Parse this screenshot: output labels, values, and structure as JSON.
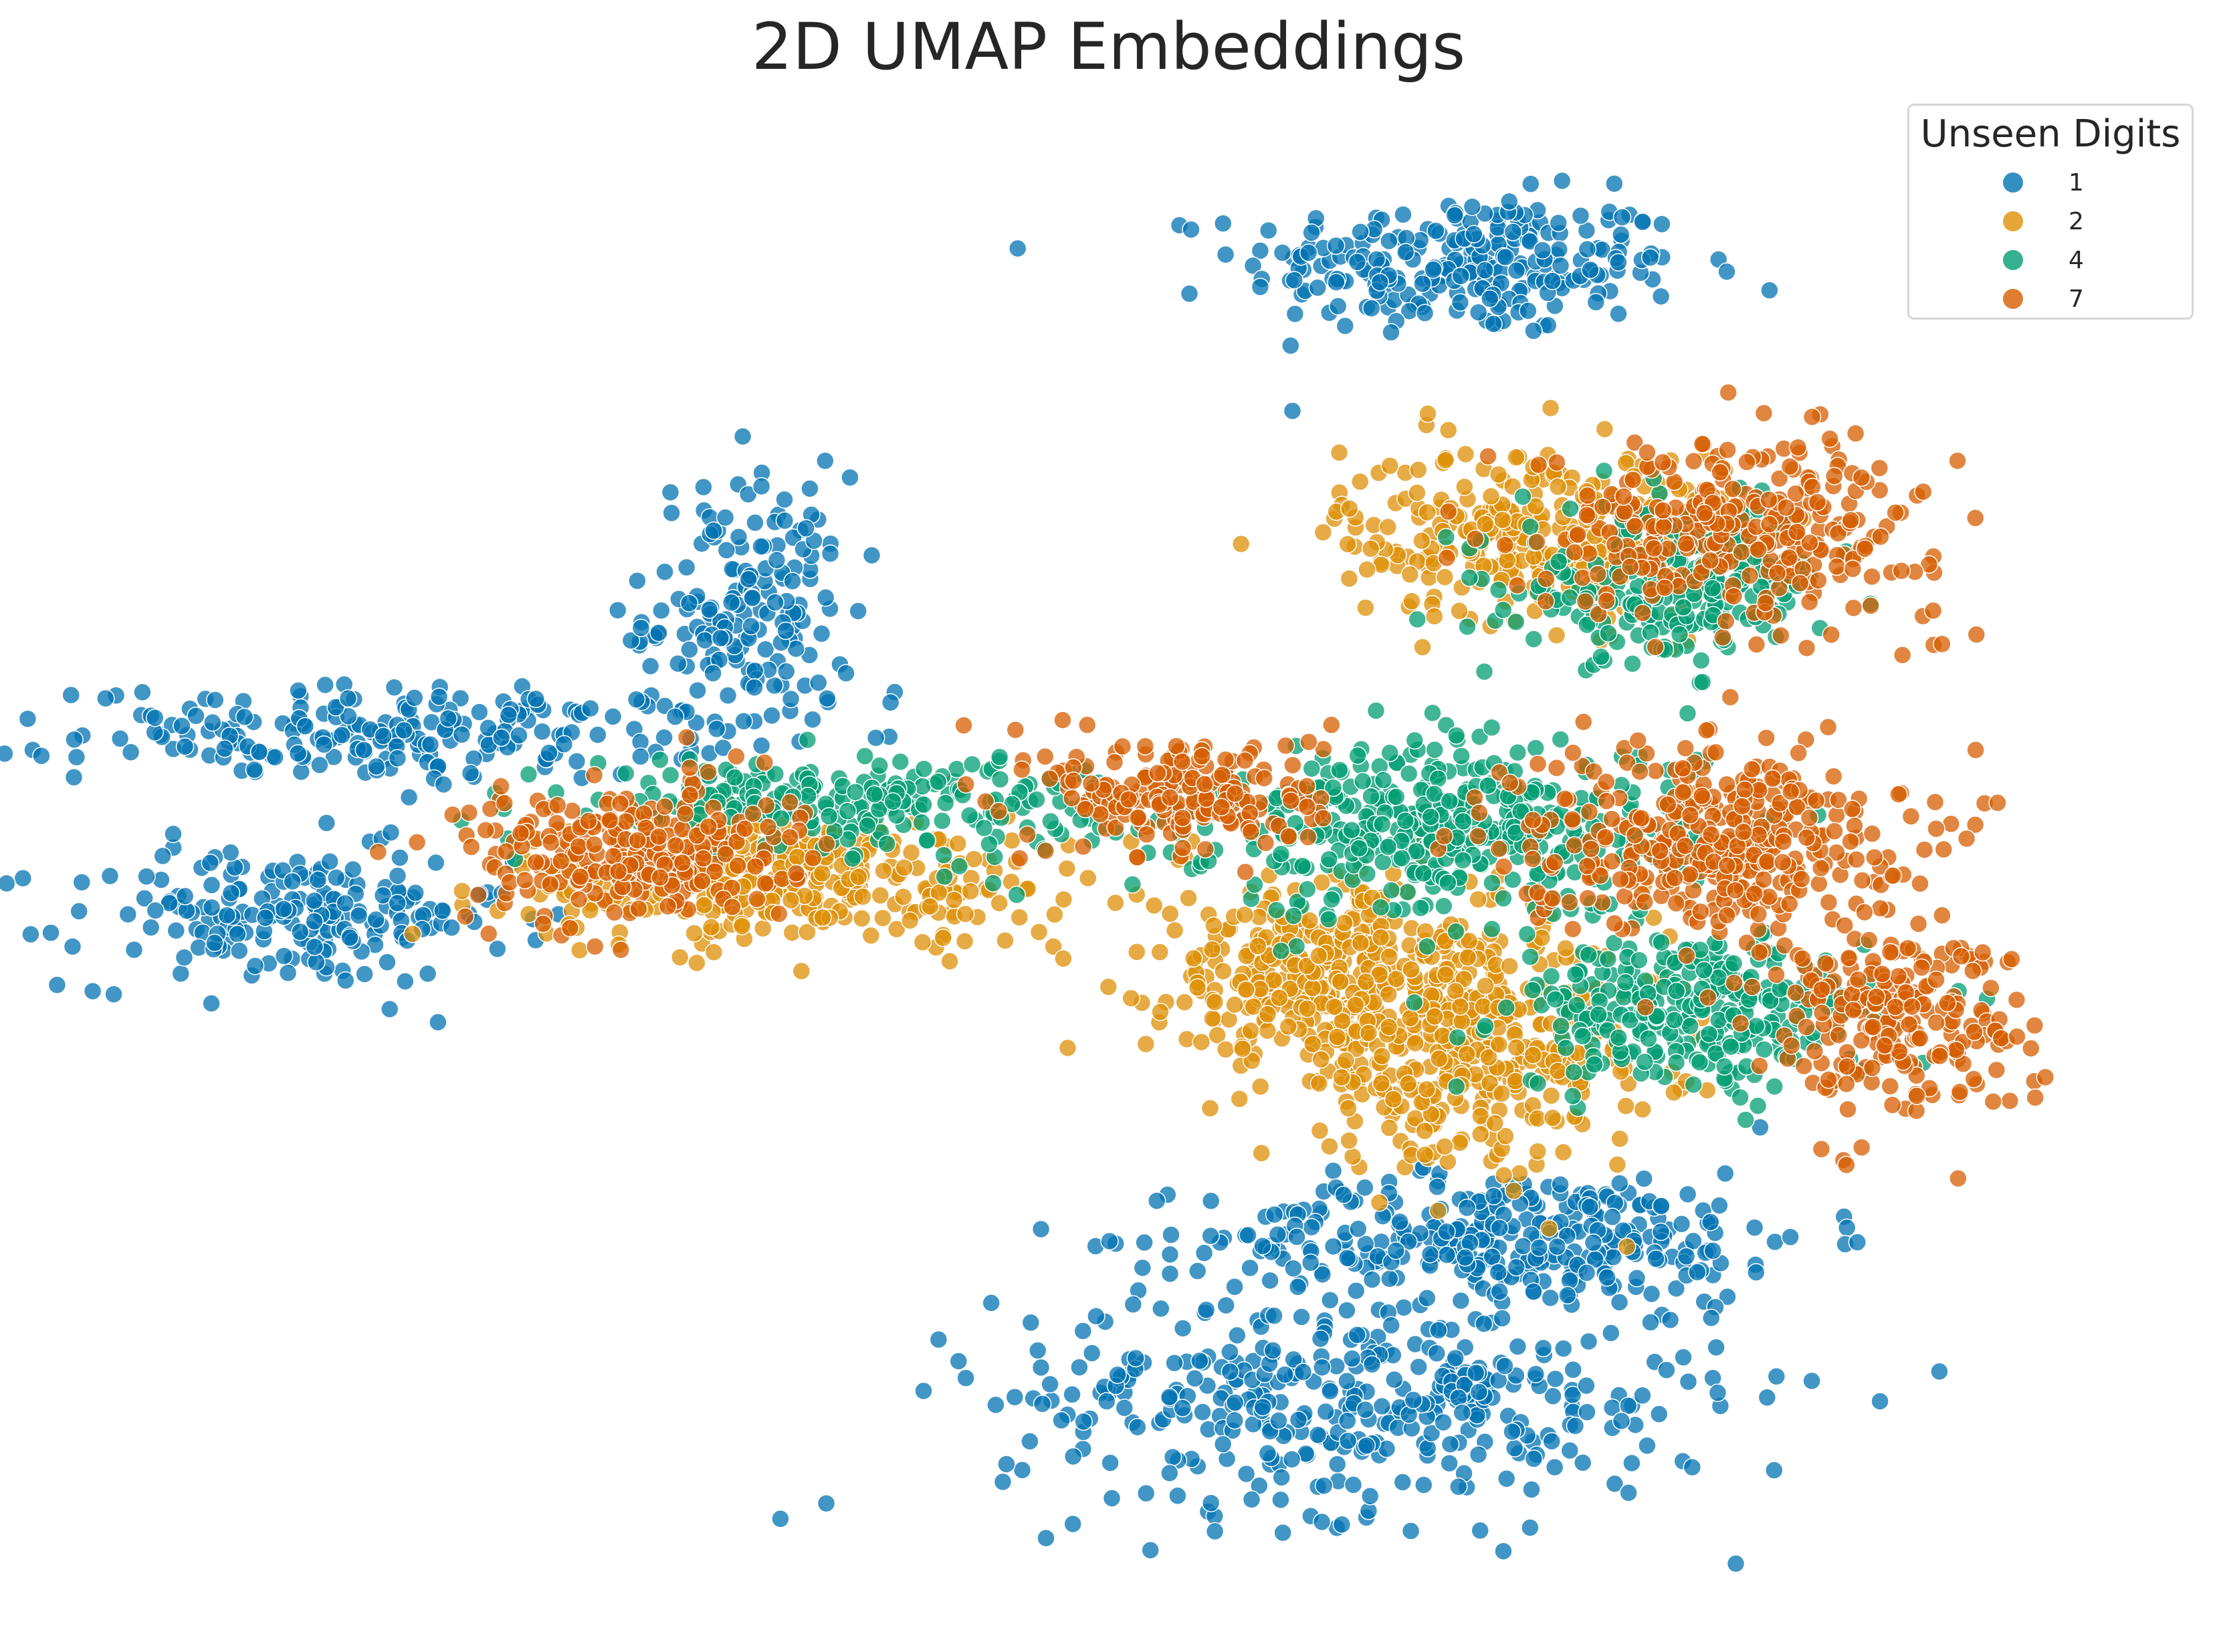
{
  "chart_data": {
    "type": "scatter",
    "title": "2D UMAP Embeddings",
    "xlabel": "",
    "ylabel": "",
    "grid": false,
    "legend": {
      "title": "Unseen Digits",
      "placement": "top-right",
      "entries": [
        "1",
        "2",
        "4",
        "7"
      ]
    },
    "xlim": [
      0,
      100
    ],
    "ylim": [
      0,
      100
    ],
    "series": [
      {
        "name": "1",
        "color": "#0173b2",
        "clusters": [
          {
            "cx": 67.6,
            "cy": 90.5,
            "sx": 5.5,
            "sy": 2.4,
            "n": 260
          },
          {
            "cx": 32.0,
            "cy": 66.5,
            "sx": 2.6,
            "sy": 4.8,
            "n": 180
          },
          {
            "cx": 15.0,
            "cy": 58.2,
            "sx": 8.0,
            "sy": 1.6,
            "n": 220
          },
          {
            "cx": 9.0,
            "cy": 45.5,
            "sx": 5.5,
            "sy": 2.4,
            "n": 200
          },
          {
            "cx": 70.0,
            "cy": 23.5,
            "sx": 7.5,
            "sy": 2.2,
            "n": 330
          },
          {
            "cx": 62.5,
            "cy": 12.5,
            "sx": 9.0,
            "sy": 4.0,
            "n": 420
          }
        ]
      },
      {
        "name": "2",
        "color": "#de8f05",
        "clusters": [
          {
            "cx": 71.5,
            "cy": 72.0,
            "sx": 5.0,
            "sy": 3.0,
            "n": 320
          },
          {
            "cx": 34.0,
            "cy": 48.2,
            "sx": 7.0,
            "sy": 2.2,
            "n": 340
          },
          {
            "cx": 60.0,
            "cy": 42.0,
            "sx": 4.0,
            "sy": 3.2,
            "n": 300
          },
          {
            "cx": 67.5,
            "cy": 36.5,
            "sx": 5.0,
            "sy": 4.0,
            "n": 420
          }
        ]
      },
      {
        "name": "4",
        "color": "#029e73",
        "clusters": [
          {
            "cx": 78.0,
            "cy": 68.5,
            "sx": 3.8,
            "sy": 2.6,
            "n": 260
          },
          {
            "cx": 37.0,
            "cy": 53.5,
            "sx": 7.0,
            "sy": 1.6,
            "n": 230
          },
          {
            "cx": 67.0,
            "cy": 51.5,
            "sx": 6.0,
            "sy": 3.0,
            "n": 420
          },
          {
            "cx": 79.0,
            "cy": 39.0,
            "sx": 4.5,
            "sy": 2.6,
            "n": 300
          }
        ]
      },
      {
        "name": "7",
        "color": "#d55e00",
        "clusters": [
          {
            "cx": 81.5,
            "cy": 72.5,
            "sx": 5.0,
            "sy": 3.0,
            "n": 300
          },
          {
            "cx": 26.0,
            "cy": 50.0,
            "sx": 4.0,
            "sy": 2.4,
            "n": 260
          },
          {
            "cx": 54.0,
            "cy": 54.0,
            "sx": 3.5,
            "sy": 2.2,
            "n": 200
          },
          {
            "cx": 80.0,
            "cy": 51.0,
            "sx": 4.8,
            "sy": 3.3,
            "n": 380
          },
          {
            "cx": 89.0,
            "cy": 38.5,
            "sx": 3.3,
            "sy": 3.2,
            "n": 230
          }
        ]
      }
    ]
  }
}
